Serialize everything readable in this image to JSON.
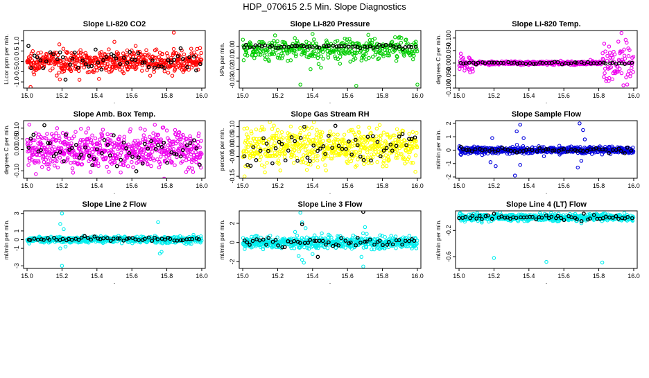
{
  "figure_title": "HDP_070615  2.5 Min. Slope Diagnostics",
  "colors": {
    "red": "#ff0000",
    "green": "#00cc00",
    "magenta": "#ee00ee",
    "yellow": "#ffff00",
    "blue": "#0000dd",
    "cyan": "#00eeee",
    "black": "#000000"
  },
  "chart_data": [
    {
      "type": "scatter",
      "title": "Slope Li-820 CO2",
      "ylabel": "Li.cor ppm per min.",
      "xlabel": ".",
      "xlim": [
        14.98,
        16.02
      ],
      "ylim": [
        -1.3,
        1.5
      ],
      "xticks": [
        "15.0",
        "15.2",
        "15.4",
        "15.6",
        "15.8",
        "16.0"
      ],
      "yticks": [
        {
          "v": -1.0,
          "label": "-1.0"
        },
        {
          "v": -0.5,
          "label": "-0.5"
        },
        {
          "v": 0.0,
          "label": "0.0"
        },
        {
          "v": 0.5,
          "label": "0.5"
        },
        {
          "v": 1.0,
          "label": "1.0"
        }
      ],
      "series": [
        {
          "name": "all",
          "color": "red",
          "n": 520,
          "center": 0.0,
          "spread": 0.28,
          "outliers": [
            [
              15.02,
              -1.25
            ],
            [
              15.84,
              1.4
            ],
            [
              15.5,
              0.95
            ],
            [
              15.3,
              -0.9
            ]
          ]
        },
        {
          "name": "selected",
          "color": "black",
          "n": 55,
          "center": 0.0,
          "spread": 0.3
        }
      ]
    },
    {
      "type": "scatter",
      "title": "Slope Li-820 Pressure",
      "ylabel": "kPa per min.",
      "xlabel": ".",
      "xlim": [
        14.98,
        16.02
      ],
      "ylim": [
        -0.036,
        0.014
      ],
      "xticks": [
        "15.0",
        "15.2",
        "15.4",
        "15.6",
        "15.8",
        "16.0"
      ],
      "yticks": [
        {
          "v": -0.03,
          "label": "-0.03"
        },
        {
          "v": -0.02,
          "label": "-0.02"
        },
        {
          "v": -0.01,
          "label": "-0.01"
        },
        {
          "v": 0.0,
          "label": "0.00"
        }
      ],
      "series": [
        {
          "name": "all",
          "color": "green",
          "n": 380,
          "center": -0.002,
          "spread": 0.0055,
          "outliers": [
            [
              15.33,
              -0.033
            ],
            [
              15.65,
              -0.034
            ],
            [
              16.0,
              -0.033
            ],
            [
              15.4,
              0.011
            ]
          ]
        },
        {
          "name": "selected",
          "color": "black",
          "n": 55,
          "center": 0.0,
          "spread": 0.0008
        }
      ]
    },
    {
      "type": "scatter",
      "title": "Slope Li-820 Temp.",
      "ylabel": "degrees C per min.",
      "xlabel": ".",
      "xlim": [
        14.98,
        16.02
      ],
      "ylim": [
        -0.1,
        0.13
      ],
      "xticks": [
        "15.0",
        "15.2",
        "15.4",
        "15.6",
        "15.8",
        "16.0"
      ],
      "yticks": [
        {
          "v": -0.1,
          "label": "-0.100"
        },
        {
          "v": -0.05,
          "label": "-0.050"
        },
        {
          "v": 0.0,
          "label": "0.000"
        },
        {
          "v": 0.05,
          "label": "0.050"
        },
        {
          "v": 0.1,
          "label": "0.100"
        }
      ],
      "series": [
        {
          "name": "all",
          "color": "magenta",
          "n": 430,
          "center": 0.0,
          "spread": 0.004,
          "edge": [
            [
              15.0,
              15.08,
              0.02
            ],
            [
              15.82,
              16.0,
              0.045
            ]
          ],
          "outliers": [
            [
              15.93,
              0.12
            ],
            [
              15.86,
              -0.06
            ]
          ]
        },
        {
          "name": "selected",
          "color": "black",
          "n": 55,
          "center": 0.0,
          "spread": 0.003
        }
      ]
    },
    {
      "type": "scatter",
      "title": "Slope Amb. Box Temp.",
      "ylabel": "degrees C per min.",
      "xlabel": ".",
      "xlim": [
        14.98,
        16.02
      ],
      "ylim": [
        -0.135,
        0.135
      ],
      "xticks": [
        "15.0",
        "15.2",
        "15.4",
        "15.6",
        "15.8",
        "16.0"
      ],
      "yticks": [
        {
          "v": -0.1,
          "label": "-0.10"
        },
        {
          "v": 0.0,
          "label": "0.00"
        },
        {
          "v": 0.05,
          "label": "0.05"
        },
        {
          "v": 0.1,
          "label": "0.10"
        }
      ],
      "series": [
        {
          "name": "all",
          "color": "magenta",
          "n": 620,
          "center": 0.0,
          "spread": 0.05
        },
        {
          "name": "selected",
          "color": "black",
          "n": 55,
          "center": 0.0,
          "spread": 0.045
        }
      ]
    },
    {
      "type": "scatter",
      "title": "Slope Gas Stream RH",
      "ylabel": "percent per min.",
      "xlabel": ".",
      "xlim": [
        14.98,
        16.02
      ],
      "ylim": [
        -0.16,
        0.13
      ],
      "xticks": [
        "15.0",
        "15.2",
        "15.4",
        "15.6",
        "15.8",
        "16.0"
      ],
      "yticks": [
        {
          "v": -0.15,
          "label": "-0.15"
        },
        {
          "v": -0.05,
          "label": "-0.05"
        },
        {
          "v": 0.0,
          "label": "0.00"
        },
        {
          "v": 0.05,
          "label": "0.05"
        },
        {
          "v": 0.1,
          "label": "0.10"
        }
      ],
      "series": [
        {
          "name": "all",
          "color": "yellow",
          "n": 600,
          "center": 0.0,
          "spread": 0.05
        },
        {
          "name": "selected",
          "color": "black",
          "n": 55,
          "center": 0.0,
          "spread": 0.05
        }
      ]
    },
    {
      "type": "scatter",
      "title": "Slope Sample Flow",
      "ylabel": "ml/min per min.",
      "xlabel": ".",
      "xlim": [
        14.98,
        16.02
      ],
      "ylim": [
        -2.1,
        2.2
      ],
      "xticks": [
        "15.0",
        "15.2",
        "15.4",
        "15.6",
        "15.8",
        "16.0"
      ],
      "yticks": [
        {
          "v": -2,
          "label": "-2"
        },
        {
          "v": -1,
          "label": "-1"
        },
        {
          "v": 0,
          "label": "0"
        },
        {
          "v": 1,
          "label": "1"
        },
        {
          "v": 2,
          "label": "2"
        }
      ],
      "series": [
        {
          "name": "all",
          "color": "blue",
          "n": 560,
          "center": 0.0,
          "spread": 0.14,
          "outliers": [
            [
              15.35,
              1.9
            ],
            [
              15.33,
              1.4
            ],
            [
              15.32,
              -1.9
            ],
            [
              15.69,
              2.0
            ],
            [
              15.68,
              -1.3
            ],
            [
              15.71,
              1.5
            ],
            [
              15.21,
              -1.2
            ],
            [
              15.19,
              0.9
            ],
            [
              15.18,
              -0.9
            ],
            [
              15.35,
              -1.1
            ],
            [
              15.37,
              0.9
            ],
            [
              15.7,
              -0.8
            ],
            [
              15.72,
              0.8
            ]
          ]
        },
        {
          "name": "selected",
          "color": "black",
          "n": 55,
          "center": 0.0,
          "spread": 0.1
        }
      ]
    },
    {
      "type": "scatter",
      "title": "Slope Line 2 Flow",
      "ylabel": "ml/min per min.",
      "xlabel": ".",
      "xlim": [
        14.98,
        16.02
      ],
      "ylim": [
        -3.3,
        3.3
      ],
      "xticks": [
        "15.0",
        "15.2",
        "15.4",
        "15.6",
        "15.8",
        "16.0"
      ],
      "yticks": [
        {
          "v": -3,
          "label": "-3"
        },
        {
          "v": -1,
          "label": "-1"
        },
        {
          "v": 0,
          "label": "0"
        },
        {
          "v": 1,
          "label": "1"
        },
        {
          "v": 3,
          "label": "3"
        }
      ],
      "series": [
        {
          "name": "all",
          "color": "cyan",
          "n": 520,
          "center": 0.0,
          "spread": 0.2,
          "outliers": [
            [
              15.2,
              3.0
            ],
            [
              15.19,
              1.8
            ],
            [
              15.2,
              -3.0
            ],
            [
              15.21,
              1.2
            ],
            [
              15.19,
              -1.0
            ],
            [
              15.75,
              2.0
            ],
            [
              15.77,
              -1.4
            ],
            [
              15.76,
              -1.6
            ],
            [
              15.22,
              -0.8
            ]
          ]
        },
        {
          "name": "selected",
          "color": "black",
          "n": 55,
          "center": 0.05,
          "spread": 0.12
        }
      ]
    },
    {
      "type": "scatter",
      "title": "Slope Line 3 Flow",
      "ylabel": "ml/min per min.",
      "xlabel": ".",
      "xlim": [
        14.98,
        16.02
      ],
      "ylim": [
        -2.7,
        3.3
      ],
      "xticks": [
        "15.0",
        "15.2",
        "15.4",
        "15.6",
        "15.8",
        "16.0"
      ],
      "yticks": [
        {
          "v": -2,
          "label": "-2"
        },
        {
          "v": 0,
          "label": "0"
        },
        {
          "v": 2,
          "label": "2"
        }
      ],
      "series": [
        {
          "name": "all",
          "color": "cyan",
          "n": 560,
          "center": 0.0,
          "spread": 0.35,
          "outliers": [
            [
              15.33,
              3.1
            ],
            [
              15.34,
              2.1
            ],
            [
              15.35,
              -2.1
            ],
            [
              15.32,
              -1.4
            ],
            [
              15.36,
              1.5
            ],
            [
              15.34,
              -1.8
            ],
            [
              15.69,
              -2.5
            ],
            [
              15.7,
              1.6
            ],
            [
              15.68,
              -1.5
            ],
            [
              15.71,
              0.9
            ],
            [
              15.4,
              -1.2
            ],
            [
              15.3,
              1.1
            ]
          ]
        },
        {
          "name": "selected",
          "color": "black",
          "n": 55,
          "center": 0.0,
          "spread": 0.3,
          "outliers": [
            [
              15.69,
              3.2
            ],
            [
              15.34,
              1.9
            ],
            [
              15.43,
              -1.5
            ]
          ]
        }
      ]
    },
    {
      "type": "scatter",
      "title": "Slope Line 4 (LT) Flow",
      "ylabel": "ml/min per min.",
      "xlabel": ".",
      "xlim": [
        14.98,
        16.02
      ],
      "ylim": [
        -0.78,
        0.1
      ],
      "xticks": [
        "15.0",
        "15.2",
        "15.4",
        "15.6",
        "15.8",
        "16.0"
      ],
      "yticks": [
        {
          "v": -0.6,
          "label": "-0.6"
        },
        {
          "v": -0.2,
          "label": "-0.2"
        }
      ],
      "series": [
        {
          "name": "all",
          "color": "cyan",
          "n": 560,
          "center": 0.0,
          "spread": 0.03,
          "outliers": [
            [
              15.2,
              -0.62
            ],
            [
              15.5,
              -0.68
            ],
            [
              15.82,
              -0.69
            ]
          ]
        },
        {
          "name": "selected",
          "color": "black",
          "n": 55,
          "center": 0.0,
          "spread": 0.025
        }
      ]
    }
  ]
}
